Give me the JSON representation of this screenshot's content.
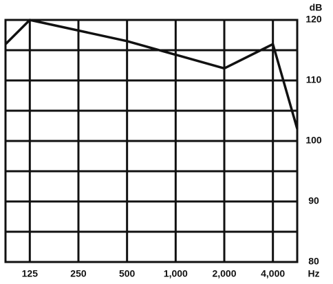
{
  "chart_data": {
    "type": "line",
    "x_label": "Hz",
    "y_label": "dB",
    "x": [
      88.4,
      125,
      500,
      2000,
      4000,
      5657
    ],
    "series": [
      {
        "color": "#111111",
        "values": [
          116,
          120,
          116.5,
          112,
          116,
          102
        ]
      }
    ],
    "log_x": true,
    "xlim": [
      88.4,
      5657
    ],
    "xticks": [
      125,
      250,
      500,
      {
        "value": 1000,
        "label": "1,000"
      },
      {
        "value": 2000,
        "label": "2,000"
      },
      {
        "value": 4000,
        "label": "4,000"
      }
    ],
    "ylim": [
      80,
      120
    ],
    "yticks": [
      80,
      90,
      100,
      110,
      120
    ],
    "minor_yticks": [
      85,
      95,
      105,
      115
    ],
    "grid": true
  }
}
